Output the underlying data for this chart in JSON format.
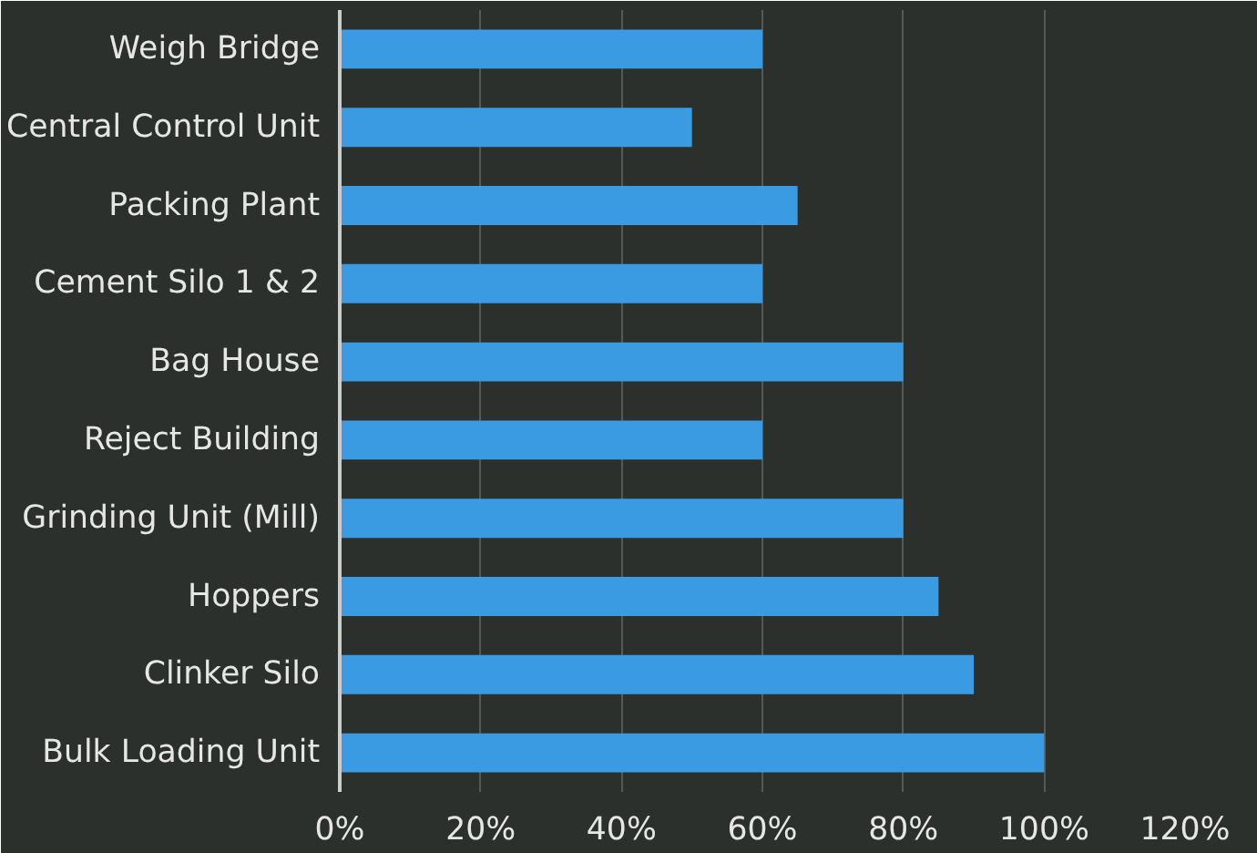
{
  "chart_data": {
    "type": "bar",
    "orientation": "horizontal",
    "categories": [
      "Weigh Bridge",
      "Central Control Unit",
      "Packing Plant",
      "Cement Silo 1 & 2",
      "Bag House",
      "Reject Building",
      "Grinding Unit (Mill)",
      "Hoppers",
      "Clinker Silo",
      "Bulk Loading Unit"
    ],
    "values": [
      60,
      50,
      65,
      60,
      80,
      60,
      80,
      85,
      90,
      100
    ],
    "color": "#3a9be2",
    "xlim": [
      0,
      120
    ],
    "xticks": [
      {
        "value": 0,
        "label": "0%"
      },
      {
        "value": 20,
        "label": "20%"
      },
      {
        "value": 40,
        "label": "40%"
      },
      {
        "value": 60,
        "label": "60%"
      },
      {
        "value": 80,
        "label": "80%"
      },
      {
        "value": 100,
        "label": "100%"
      },
      {
        "value": 120,
        "label": "120%"
      }
    ],
    "grid": "x"
  }
}
